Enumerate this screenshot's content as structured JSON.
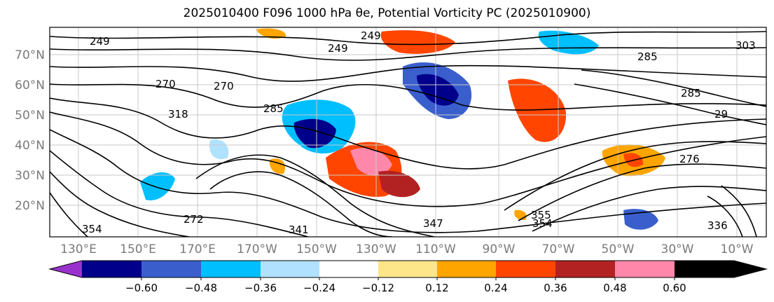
{
  "title": {
    "main": "2025010400 F096 1000 hPa θe, Potential Vorticity PC (2025010900)"
  },
  "map": {
    "lat_labels": [
      "70°N",
      "60°N",
      "50°N",
      "40°N",
      "30°N",
      "20°N"
    ],
    "lon_labels": [
      "130°E",
      "150°E",
      "170°E",
      "170°W",
      "150°W",
      "130°W",
      "110°W",
      "90°W",
      "70°W",
      "50°W",
      "30°W",
      "10°W"
    ],
    "contour_labels": [
      "249",
      "249",
      "249",
      "270",
      "270",
      "285",
      "285",
      "29",
      "318",
      "354",
      "354",
      "341",
      "347",
      "355",
      "336",
      "276",
      "303",
      "285",
      "272"
    ]
  },
  "colorbar": {
    "tick_labels": [
      "−0.60",
      "−0.48",
      "−0.36",
      "−0.24",
      "−0.12",
      "0.12",
      "0.24",
      "0.36",
      "0.48",
      "0.60"
    ],
    "colors": [
      "#9932cc",
      "#00008b",
      "#3a5fcd",
      "#00bfff",
      "#b0e2ff",
      "#ffffff",
      "#fde68a",
      "#ffa500",
      "#ff4500",
      "#b22222",
      "#ff88aa"
    ]
  }
}
